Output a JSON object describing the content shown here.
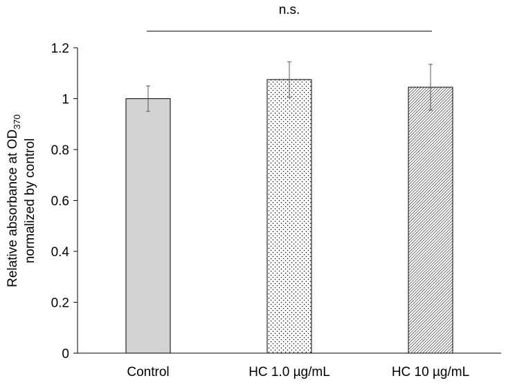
{
  "chart_data": {
    "type": "bar",
    "categories": [
      "Control",
      "HC 1.0 µg/mL",
      "HC 10 µg/mL"
    ],
    "values": [
      1.0,
      1.075,
      1.045
    ],
    "errors": [
      0.05,
      0.07,
      0.09
    ],
    "fills": [
      "solid-gray",
      "sparse-dots",
      "dense-hatch"
    ],
    "colors": {
      "control_fill": "#d3d3d3",
      "stroke": "#000000",
      "error_bar": "#555555"
    },
    "ylim": [
      0,
      1.2
    ],
    "yticks": [
      0,
      0.2,
      0.4,
      0.6,
      0.8,
      1,
      1.2
    ],
    "ylabel_line1": "Relative absorbance at OD",
    "ylabel_sub": "370",
    "ylabel_line2": "normalized by control",
    "xlabel": "",
    "significance": {
      "label": "n.s.",
      "from": "Control",
      "to": "HC 10 µg/mL"
    }
  }
}
